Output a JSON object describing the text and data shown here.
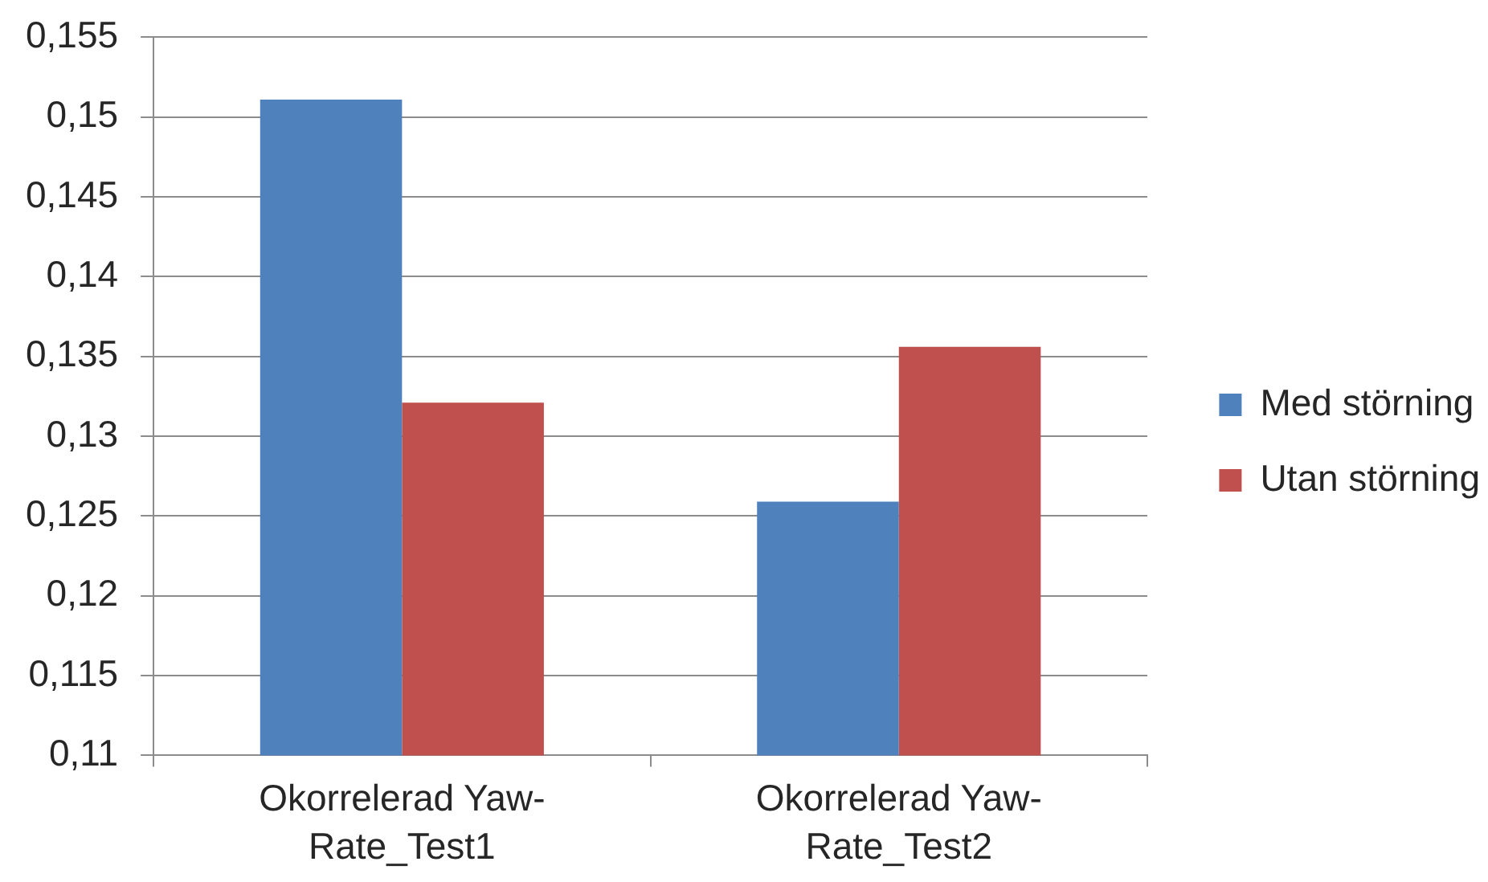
{
  "chart_data": {
    "type": "bar",
    "categories": [
      "Okorrelerad Yaw-Rate_Test1",
      "Okorrelerad Yaw-Rate_Test2"
    ],
    "series": [
      {
        "name": "Med störning",
        "color": "#4f81bd",
        "values": [
          0.1511,
          0.1259
        ]
      },
      {
        "name": "Utan störning",
        "color": "#c0504d",
        "values": [
          0.1321,
          0.1356
        ]
      }
    ],
    "ylim": [
      0.11,
      0.155
    ],
    "yticks": [
      {
        "value": 0.11,
        "label": "0,11"
      },
      {
        "value": 0.115,
        "label": "0,115"
      },
      {
        "value": 0.12,
        "label": "0,12"
      },
      {
        "value": 0.125,
        "label": "0,125"
      },
      {
        "value": 0.13,
        "label": "0,13"
      },
      {
        "value": 0.135,
        "label": "0,135"
      },
      {
        "value": 0.14,
        "label": "0,14"
      },
      {
        "value": 0.145,
        "label": "0,145"
      },
      {
        "value": 0.15,
        "label": "0,15"
      },
      {
        "value": 0.155,
        "label": "0,155"
      }
    ],
    "grid": "y",
    "legend": "right"
  }
}
